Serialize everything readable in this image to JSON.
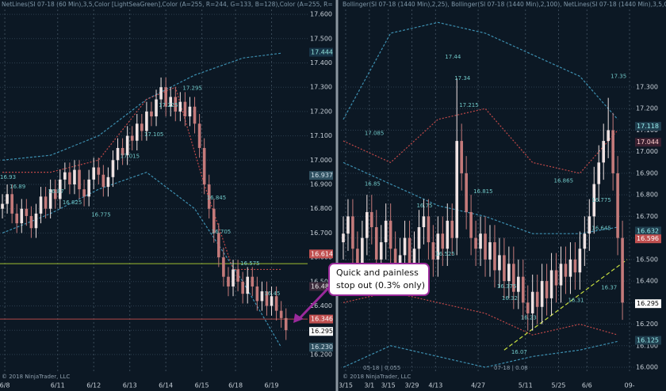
{
  "chart_data": [
    {
      "type": "candlestick",
      "header": "NetLines(SI 07-18 (60 Min),3,5,Color [LightSeaGreen],Color (A=255, R=244, G=133, B=128),Color (A=255, R=0, G=131, B=",
      "footer": "© 2018 NinjaTrader, LLC",
      "xlim": [
        0,
        64
      ],
      "ylim": [
        16.128,
        17.659
      ],
      "grid": true,
      "up_color": "#efe2e2",
      "down_color": "#c47a7a",
      "xticks": [
        {
          "value": 1,
          "label": "6/8"
        },
        {
          "value": 12,
          "label": "6/11"
        },
        {
          "value": 19.5,
          "label": "6/12"
        },
        {
          "value": 27,
          "label": "6/13"
        },
        {
          "value": 34.5,
          "label": "6/14"
        },
        {
          "value": 42,
          "label": "6/15"
        },
        {
          "value": 49,
          "label": "6/18"
        },
        {
          "value": 56.5,
          "label": "6/19"
        }
      ],
      "yticks": [
        {
          "value": 17.6,
          "label": "17.600"
        },
        {
          "value": 17.5,
          "label": "17.500"
        },
        {
          "value": 17.4,
          "label": "17.400"
        },
        {
          "value": 17.3,
          "label": "17.300"
        },
        {
          "value": 17.2,
          "label": "17.200"
        },
        {
          "value": 17.1,
          "label": "17.100"
        },
        {
          "value": 17.0,
          "label": "17.000"
        },
        {
          "value": 16.9,
          "label": "16.900"
        },
        {
          "value": 16.8,
          "label": "16.800"
        },
        {
          "value": 16.7,
          "label": "16.700"
        },
        {
          "value": 16.6,
          "label": "16.600"
        },
        {
          "value": 16.5,
          "label": "16.500"
        },
        {
          "value": 16.4,
          "label": "16.400"
        },
        {
          "value": 16.3,
          "label": "16.300"
        },
        {
          "value": 16.2,
          "label": "16.200"
        }
      ],
      "open": [
        16.8,
        16.82,
        16.86,
        16.78,
        16.74,
        16.8,
        16.77,
        16.72,
        16.78,
        16.85,
        16.8,
        16.88,
        16.84,
        16.92,
        16.95,
        16.9,
        16.96,
        16.88,
        16.85,
        16.92,
        16.97,
        16.94,
        16.89,
        16.93,
        17.0,
        17.05,
        17.02,
        17.1,
        17.08,
        17.15,
        17.12,
        17.2,
        17.18,
        17.25,
        17.3,
        17.22,
        17.26,
        17.2,
        17.24,
        17.18,
        17.22,
        17.15,
        17.05,
        16.9,
        16.8,
        16.7,
        16.6,
        16.52,
        16.48,
        16.55,
        16.5,
        16.45,
        16.52,
        16.48,
        16.42,
        16.46,
        16.4,
        16.44,
        16.38,
        16.35
      ],
      "high": [
        16.86,
        16.9,
        16.9,
        16.82,
        16.84,
        16.84,
        16.81,
        16.82,
        16.89,
        16.89,
        16.92,
        16.92,
        16.96,
        16.99,
        16.99,
        17.0,
        17.0,
        16.92,
        16.96,
        17.01,
        17.01,
        16.98,
        16.97,
        17.04,
        17.09,
        17.09,
        17.14,
        17.14,
        17.19,
        17.19,
        17.24,
        17.24,
        17.29,
        17.34,
        17.34,
        17.3,
        17.3,
        17.28,
        17.28,
        17.26,
        17.26,
        17.19,
        17.09,
        16.94,
        16.84,
        16.74,
        16.64,
        16.56,
        16.59,
        16.59,
        16.54,
        16.56,
        16.56,
        16.52,
        16.5,
        16.5,
        16.48,
        16.48,
        16.42,
        16.39
      ],
      "low": [
        16.76,
        16.78,
        16.74,
        16.7,
        16.7,
        16.73,
        16.68,
        16.68,
        16.74,
        16.76,
        16.76,
        16.8,
        16.8,
        16.88,
        16.86,
        16.86,
        16.84,
        16.81,
        16.81,
        16.88,
        16.9,
        16.85,
        16.85,
        16.89,
        16.96,
        16.98,
        16.98,
        17.04,
        17.04,
        17.08,
        17.08,
        17.14,
        17.14,
        17.21,
        17.18,
        17.18,
        17.16,
        17.16,
        17.14,
        17.14,
        17.11,
        17.01,
        16.86,
        16.76,
        16.66,
        16.56,
        16.48,
        16.44,
        16.44,
        16.46,
        16.41,
        16.41,
        16.44,
        16.38,
        16.38,
        16.36,
        16.36,
        16.34,
        16.31,
        16.26
      ],
      "close": [
        16.82,
        16.86,
        16.78,
        16.74,
        16.8,
        16.77,
        16.72,
        16.78,
        16.85,
        16.8,
        16.88,
        16.84,
        16.92,
        16.95,
        16.9,
        16.96,
        16.88,
        16.85,
        16.92,
        16.97,
        16.94,
        16.89,
        16.93,
        17.0,
        17.05,
        17.02,
        17.1,
        17.08,
        17.15,
        17.12,
        17.2,
        17.18,
        17.25,
        17.3,
        17.22,
        17.26,
        17.2,
        17.24,
        17.18,
        17.22,
        17.15,
        17.05,
        16.9,
        16.8,
        16.7,
        16.6,
        16.52,
        16.48,
        16.55,
        16.5,
        16.45,
        16.52,
        16.48,
        16.42,
        16.46,
        16.4,
        16.44,
        16.38,
        16.35,
        16.3
      ],
      "series": [
        {
          "color": "#3d8fb0",
          "dash": "3,2",
          "x": [
            0,
            10,
            20,
            30,
            40,
            50,
            58
          ],
          "values": [
            17.0,
            17.02,
            17.1,
            17.25,
            17.35,
            17.42,
            17.44
          ]
        },
        {
          "color": "#3d8fb0",
          "dash": "3,2",
          "x": [
            0,
            10,
            20,
            30,
            40,
            50,
            58
          ],
          "values": [
            16.7,
            16.78,
            16.88,
            16.95,
            16.8,
            16.5,
            16.23
          ]
        },
        {
          "color": "#c04848",
          "dash": "2,2",
          "x": [
            0,
            10,
            20,
            30,
            36,
            42,
            48,
            54,
            58
          ],
          "values": [
            16.95,
            16.95,
            17.0,
            17.25,
            17.3,
            16.9,
            16.55,
            16.55,
            16.55
          ]
        }
      ],
      "price_labels": [
        {
          "x": 0,
          "value": 16.93
        },
        {
          "x": 2,
          "value": 16.89
        },
        {
          "x": 10,
          "value": 16.87
        },
        {
          "x": 13,
          "value": 16.825
        },
        {
          "x": 19,
          "value": 16.775
        },
        {
          "x": 25,
          "value": 17.015
        },
        {
          "x": 30,
          "value": 17.105
        },
        {
          "x": 33,
          "value": 17.225
        },
        {
          "x": 38,
          "value": 17.295
        },
        {
          "x": 43,
          "value": 16.845
        },
        {
          "x": 44,
          "value": 16.705
        },
        {
          "x": 50,
          "value": 16.575
        },
        {
          "x": 55,
          "value": 16.45
        }
      ],
      "hlines": [
        {
          "value": 16.574,
          "color": "#9fbf30"
        },
        {
          "value": 16.346,
          "color": "#b04848"
        }
      ],
      "markers": [
        {
          "value": 17.444,
          "label": "17.444",
          "bg": "#173447",
          "fg": "#8fe0d8"
        },
        {
          "value": 16.937,
          "label": "16.937",
          "bg": "#2f5060",
          "fg": "#d0e0ea"
        },
        {
          "value": 16.614,
          "label": "16.614",
          "bg": "#c05050",
          "fg": "#ffffff"
        },
        {
          "value": 16.48,
          "label": "16.480",
          "bg": "#3a2a3a",
          "fg": "#eeeeee"
        },
        {
          "value": 16.346,
          "label": "16.346",
          "bg": "#c05050",
          "fg": "#ffffff"
        },
        {
          "value": 16.295,
          "label": "16.295",
          "bg": "#ffffff",
          "fg": "#000000"
        },
        {
          "value": 16.23,
          "label": "16.230",
          "bg": "#2f5060",
          "fg": "#d0e0ea"
        }
      ]
    },
    {
      "type": "candlestick",
      "header": "Bollinger(SI 07-18 (1440 Min),2,25), Bollinger(SI 07-18 (1440 Min),2,100), NetLines(SI 07-18 (1440 Min),3,5,Color [Ligh",
      "footer": "© 2018 NinjaTrader, LLC",
      "period_labels": [
        "05-18 | 0.055",
        "07-18 | 0.08"
      ],
      "xlim": [
        0,
        62
      ],
      "ylim": [
        15.978,
        17.704
      ],
      "grid": true,
      "up_color": "#efe2e2",
      "down_color": "#c47a7a",
      "xticks": [
        {
          "value": 1,
          "label": "3/15"
        },
        {
          "value": 6,
          "label": "3/1"
        },
        {
          "value": 10,
          "label": "3/15"
        },
        {
          "value": 15,
          "label": "3/29"
        },
        {
          "value": 20,
          "label": "4/13"
        },
        {
          "value": 29,
          "label": "4/27"
        },
        {
          "value": 39,
          "label": "5/11"
        },
        {
          "value": 46,
          "label": "5/25"
        },
        {
          "value": 52,
          "label": "6/6"
        },
        {
          "value": 61,
          "label": "09-"
        }
      ],
      "yticks": [
        {
          "value": 17.3,
          "label": "17.300"
        },
        {
          "value": 17.2,
          "label": "17.200"
        },
        {
          "value": 17.1,
          "label": "17.100"
        },
        {
          "value": 17.0,
          "label": "17.000"
        },
        {
          "value": 16.9,
          "label": "16.900"
        },
        {
          "value": 16.8,
          "label": "16.800"
        },
        {
          "value": 16.7,
          "label": "16.700"
        },
        {
          "value": 16.6,
          "label": "16.600"
        },
        {
          "value": 16.5,
          "label": "16.500"
        },
        {
          "value": 16.4,
          "label": "16.400"
        },
        {
          "value": 16.3,
          "label": "16.300"
        },
        {
          "value": 16.2,
          "label": "16.200"
        },
        {
          "value": 16.1,
          "label": "16.100"
        },
        {
          "value": 16.0,
          "label": "16.000"
        }
      ],
      "open": [
        16.58,
        16.62,
        16.7,
        16.55,
        16.48,
        16.6,
        16.72,
        16.65,
        16.5,
        16.58,
        16.68,
        16.55,
        16.45,
        16.52,
        16.6,
        16.48,
        16.55,
        16.65,
        16.7,
        16.58,
        16.5,
        16.62,
        16.55,
        16.68,
        16.6,
        17.05,
        16.9,
        16.72,
        16.6,
        16.55,
        16.62,
        16.5,
        16.58,
        16.45,
        16.52,
        16.4,
        16.48,
        16.35,
        16.42,
        16.3,
        16.25,
        16.35,
        16.28,
        16.4,
        16.32,
        16.45,
        16.38,
        16.48,
        16.42,
        16.5,
        16.44,
        16.55,
        16.62,
        16.7,
        16.85,
        16.95,
        17.05,
        17.1,
        16.9,
        16.6
      ],
      "high": [
        16.7,
        16.78,
        16.78,
        16.63,
        16.68,
        16.8,
        16.8,
        16.73,
        16.66,
        16.76,
        16.76,
        16.63,
        16.6,
        16.68,
        16.68,
        16.63,
        16.73,
        16.78,
        16.78,
        16.66,
        16.7,
        16.7,
        16.76,
        16.76,
        17.34,
        17.13,
        16.98,
        16.8,
        16.68,
        16.7,
        16.7,
        16.66,
        16.66,
        16.6,
        16.6,
        16.56,
        16.56,
        16.5,
        16.5,
        16.38,
        16.43,
        16.43,
        16.48,
        16.48,
        16.53,
        16.53,
        16.56,
        16.56,
        16.58,
        16.58,
        16.63,
        16.7,
        16.78,
        16.93,
        17.03,
        17.13,
        17.25,
        17.18,
        16.98,
        16.68
      ],
      "low": [
        16.5,
        16.54,
        16.47,
        16.4,
        16.4,
        16.52,
        16.57,
        16.42,
        16.42,
        16.5,
        16.47,
        16.37,
        16.37,
        16.44,
        16.4,
        16.4,
        16.47,
        16.57,
        16.5,
        16.42,
        16.42,
        16.47,
        16.47,
        16.52,
        16.52,
        16.82,
        16.64,
        16.52,
        16.47,
        16.47,
        16.42,
        16.42,
        16.37,
        16.37,
        16.32,
        16.32,
        16.27,
        16.27,
        16.22,
        16.17,
        16.17,
        16.2,
        16.2,
        16.24,
        16.24,
        16.3,
        16.3,
        16.34,
        16.34,
        16.36,
        16.36,
        16.47,
        16.54,
        16.62,
        16.77,
        16.87,
        16.97,
        16.82,
        16.52,
        16.22
      ],
      "close": [
        16.62,
        16.7,
        16.55,
        16.48,
        16.6,
        16.72,
        16.65,
        16.5,
        16.58,
        16.68,
        16.55,
        16.45,
        16.52,
        16.6,
        16.48,
        16.55,
        16.65,
        16.7,
        16.58,
        16.5,
        16.62,
        16.55,
        16.68,
        16.6,
        17.05,
        16.9,
        16.72,
        16.6,
        16.55,
        16.62,
        16.5,
        16.58,
        16.45,
        16.52,
        16.4,
        16.48,
        16.35,
        16.42,
        16.3,
        16.25,
        16.35,
        16.28,
        16.4,
        16.32,
        16.45,
        16.38,
        16.48,
        16.42,
        16.5,
        16.44,
        16.55,
        16.62,
        16.7,
        16.85,
        16.95,
        17.05,
        17.1,
        16.9,
        16.6,
        16.3
      ],
      "series": [
        {
          "color": "#3d8fb0",
          "dash": "3,2",
          "x": [
            0,
            10,
            20,
            30,
            40,
            50,
            58
          ],
          "values": [
            17.15,
            17.55,
            17.6,
            17.55,
            17.45,
            17.35,
            17.15
          ]
        },
        {
          "color": "#3d8fb0",
          "dash": "3,2",
          "x": [
            0,
            10,
            20,
            30,
            40,
            50,
            58
          ],
          "values": [
            16.0,
            16.1,
            16.05,
            16.0,
            16.05,
            16.08,
            16.12
          ]
        },
        {
          "color": "#3d8fb0",
          "dash": "3,2",
          "x": [
            0,
            10,
            20,
            30,
            40,
            50,
            58
          ],
          "values": [
            16.95,
            16.85,
            16.75,
            16.7,
            16.62,
            16.62,
            16.65
          ]
        },
        {
          "color": "#c04848",
          "dash": "2,2",
          "x": [
            0,
            10,
            20,
            30,
            40,
            50,
            58
          ],
          "values": [
            17.05,
            16.95,
            17.15,
            17.2,
            16.95,
            16.9,
            17.1
          ]
        },
        {
          "color": "#c04848",
          "dash": "2,2",
          "x": [
            0,
            10,
            20,
            30,
            40,
            50,
            58
          ],
          "values": [
            16.3,
            16.35,
            16.3,
            16.25,
            16.15,
            16.2,
            16.15
          ]
        },
        {
          "color": "#c8e040",
          "dash": "5,3",
          "x": [
            34,
            60
          ],
          "values": [
            16.08,
            16.5
          ]
        }
      ],
      "price_labels": [
        {
          "x": 5,
          "value": 17.085
        },
        {
          "x": 5,
          "value": 16.85
        },
        {
          "x": 16,
          "value": 16.75
        },
        {
          "x": 20,
          "value": 16.525
        },
        {
          "x": 22,
          "value": 17.44
        },
        {
          "x": 24,
          "value": 17.34
        },
        {
          "x": 25,
          "value": 17.215
        },
        {
          "x": 28,
          "value": 16.815
        },
        {
          "x": 33,
          "value": 16.375
        },
        {
          "x": 34,
          "value": 16.32
        },
        {
          "x": 36,
          "value": 16.07
        },
        {
          "x": 38,
          "value": 16.23
        },
        {
          "x": 45,
          "value": 16.865
        },
        {
          "x": 48,
          "value": 16.31
        },
        {
          "x": 53,
          "value": 16.775
        },
        {
          "x": 53,
          "value": 16.645
        },
        {
          "x": 55,
          "value": 16.37
        },
        {
          "x": 57,
          "value": 17.35
        }
      ],
      "hlines": [],
      "markers": [
        {
          "value": 17.118,
          "label": "17.118",
          "bg": "#1f3d4d",
          "fg": "#99eeee"
        },
        {
          "value": 17.044,
          "label": "17.044",
          "bg": "#3a2030",
          "fg": "#ffcccc"
        },
        {
          "value": 16.632,
          "label": "16.632",
          "bg": "#1f3d4d",
          "fg": "#99eeee"
        },
        {
          "value": 16.596,
          "label": "16.596",
          "bg": "#c05050",
          "fg": "#ffffff"
        },
        {
          "value": 16.295,
          "label": "16.295",
          "bg": "#ffffff",
          "fg": "#000000"
        },
        {
          "value": 16.125,
          "label": "16.125",
          "bg": "#1f3d4d",
          "fg": "#99eeee"
        }
      ]
    }
  ],
  "annotation": {
    "lines": [
      "Quick and painless",
      "stop out (0.3% only)"
    ]
  }
}
